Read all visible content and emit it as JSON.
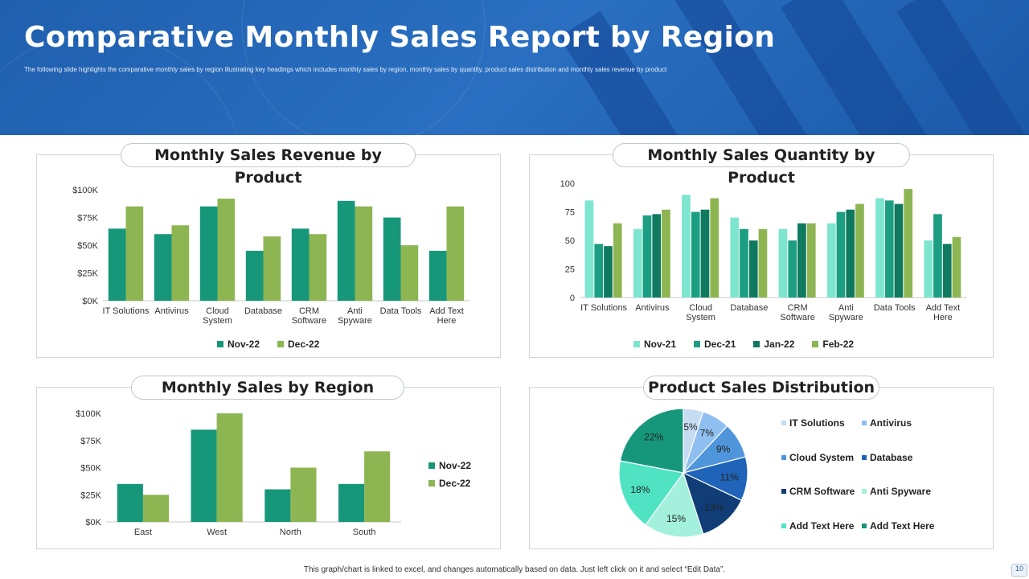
{
  "header": {
    "title": "Comparative Monthly Sales Report by Region",
    "subtitle": "The following slide highlights the comparative monthly sales by region illustrating key headings which includes monthly sales by region, monthly sales by quantity, product sales distribution and monthly sales revenue by product"
  },
  "footer": {
    "note": "This graph/chart is linked to excel, and changes automatically based on data. Just left click on it and select “Edit Data”.",
    "page_number": "10"
  },
  "panels": {
    "revenue_title": "Monthly Sales Revenue by Product",
    "quantity_title": "Monthly Sales Quantity by Product",
    "region_title": "Monthly Sales by Region",
    "distribution_title": "Product Sales Distribution"
  },
  "colors": {
    "header_blue": "#1f5fae",
    "teal_dark": "#17977a",
    "green_light": "#8db552",
    "mint": "#7ee6cf",
    "teal_mid": "#1b9e82",
    "teal_deep": "#0f7a5f",
    "green": "#8db552"
  },
  "chart_data": [
    {
      "id": "revenue",
      "type": "bar",
      "categories": [
        "IT Solutions",
        "Antivirus",
        "Cloud System",
        "Database",
        "CRM Software",
        "Anti Spyware",
        "Data Tools",
        "Add Text Here"
      ],
      "category_lines": [
        [
          "IT Solutions"
        ],
        [
          "Antivirus"
        ],
        [
          "Cloud",
          "System"
        ],
        [
          "Database"
        ],
        [
          "CRM",
          "Software"
        ],
        [
          "Anti",
          "Spyware"
        ],
        [
          "Data Tools"
        ],
        [
          "Add Text",
          "Here"
        ]
      ],
      "series": [
        {
          "name": "Nov-22",
          "color": "#17977a",
          "values": [
            65000,
            60000,
            85000,
            45000,
            65000,
            90000,
            75000,
            45000
          ]
        },
        {
          "name": "Dec-22",
          "color": "#8db552",
          "values": [
            85000,
            68000,
            92000,
            58000,
            60000,
            85000,
            50000,
            85000
          ]
        }
      ],
      "ylim": [
        0,
        100000
      ],
      "yticks": [
        0,
        25000,
        50000,
        75000,
        100000
      ],
      "ytick_labels": [
        "$0K",
        "$25K",
        "$50K",
        "$75K",
        "$100K"
      ],
      "legend": "bottom"
    },
    {
      "id": "quantity",
      "type": "bar",
      "categories": [
        "IT Solutions",
        "Antivirus",
        "Cloud System",
        "Database",
        "CRM Software",
        "Anti Spyware",
        "Data Tools",
        "Add Text Here"
      ],
      "category_lines": [
        [
          "IT Solutions"
        ],
        [
          "Antivirus"
        ],
        [
          "Cloud",
          "System"
        ],
        [
          "Database"
        ],
        [
          "CRM",
          "Software"
        ],
        [
          "Anti",
          "Spyware"
        ],
        [
          "Data Tools"
        ],
        [
          "Add Text",
          "Here"
        ]
      ],
      "series": [
        {
          "name": "Nov-21",
          "color": "#7ee6cf",
          "values": [
            85,
            60,
            90,
            70,
            60,
            65,
            87,
            50
          ]
        },
        {
          "name": "Dec-21",
          "color": "#1b9e82",
          "values": [
            47,
            72,
            75,
            60,
            50,
            75,
            85,
            73
          ]
        },
        {
          "name": "Jan-22",
          "color": "#0f7a5f",
          "values": [
            45,
            73,
            77,
            50,
            65,
            77,
            82,
            47
          ]
        },
        {
          "name": "Feb-22",
          "color": "#8db552",
          "values": [
            65,
            77,
            87,
            60,
            65,
            82,
            95,
            53
          ]
        }
      ],
      "ylim": [
        0,
        100
      ],
      "yticks": [
        0,
        25,
        50,
        75,
        100
      ],
      "ytick_labels": [
        "0",
        "25",
        "50",
        "75",
        "100"
      ],
      "legend": "bottom"
    },
    {
      "id": "region",
      "type": "bar",
      "categories": [
        "East",
        "West",
        "North",
        "South"
      ],
      "category_lines": [
        [
          "East"
        ],
        [
          "West"
        ],
        [
          "North"
        ],
        [
          "South"
        ]
      ],
      "series": [
        {
          "name": "Nov-22",
          "color": "#17977a",
          "values": [
            35000,
            85000,
            30000,
            35000
          ]
        },
        {
          "name": "Dec-22",
          "color": "#8db552",
          "values": [
            25000,
            100000,
            50000,
            65000
          ]
        }
      ],
      "ylim": [
        0,
        100000
      ],
      "yticks": [
        0,
        25000,
        50000,
        75000,
        100000
      ],
      "ytick_labels": [
        "$0K",
        "$25K",
        "$50K",
        "$75K",
        "$100K"
      ],
      "legend": "right"
    },
    {
      "id": "distribution",
      "type": "pie",
      "slices": [
        {
          "name": "IT Solutions",
          "value": 5,
          "label": "5%",
          "color": "#c6dcf3"
        },
        {
          "name": "Antivirus",
          "value": 7,
          "label": "7%",
          "color": "#8fbff0"
        },
        {
          "name": "Cloud System",
          "value": 9,
          "label": "9%",
          "color": "#4f95db"
        },
        {
          "name": "Database",
          "value": 11,
          "label": "11%",
          "color": "#1f64b8"
        },
        {
          "name": "CRM Software",
          "value": 13,
          "label": "13%",
          "color": "#103d75"
        },
        {
          "name": "Anti Spyware",
          "value": 15,
          "label": "15%",
          "color": "#a3f0dc"
        },
        {
          "name": "Add Text Here",
          "value": 18,
          "label": "18%",
          "color": "#4fe3c4"
        },
        {
          "name": "Add Text Here",
          "value": 22,
          "label": "22%",
          "color": "#16977b"
        }
      ],
      "legend": "right"
    }
  ]
}
